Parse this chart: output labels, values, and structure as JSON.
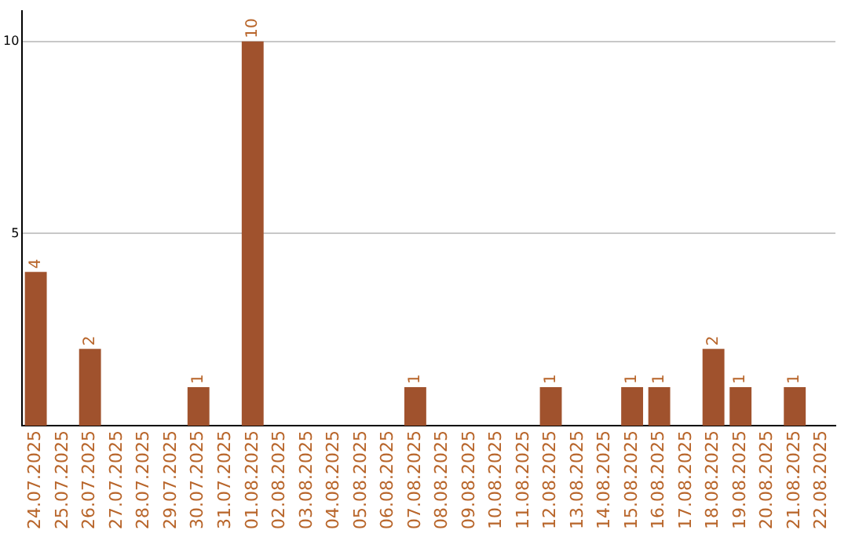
{
  "chart_data": {
    "type": "bar",
    "categories": [
      "24.07.2025",
      "25.07.2025",
      "26.07.2025",
      "27.07.2025",
      "28.07.2025",
      "29.07.2025",
      "30.07.2025",
      "31.07.2025",
      "01.08.2025",
      "02.08.2025",
      "03.08.2025",
      "04.08.2025",
      "05.08.2025",
      "06.08.2025",
      "07.08.2025",
      "08.08.2025",
      "09.08.2025",
      "10.08.2025",
      "11.08.2025",
      "12.08.2025",
      "13.08.2025",
      "14.08.2025",
      "15.08.2025",
      "16.08.2025",
      "17.08.2025",
      "18.08.2025",
      "19.08.2025",
      "20.08.2025",
      "21.08.2025",
      "22.08.2025"
    ],
    "values": [
      4,
      0,
      2,
      0,
      0,
      0,
      1,
      0,
      10,
      0,
      0,
      0,
      0,
      0,
      1,
      0,
      0,
      0,
      0,
      1,
      0,
      0,
      1,
      1,
      0,
      2,
      1,
      0,
      1,
      0
    ],
    "value_labels": [
      "4",
      null,
      "2",
      null,
      null,
      null,
      "1",
      null,
      "10",
      null,
      null,
      null,
      null,
      null,
      "1",
      null,
      null,
      null,
      null,
      "1",
      null,
      null,
      "1",
      "1",
      null,
      "2",
      "1",
      null,
      "1",
      null
    ],
    "color": "#a0522d",
    "ylim": [
      0,
      10.8
    ],
    "yticks": [
      5,
      10
    ],
    "grid": "y",
    "legend": false
  }
}
